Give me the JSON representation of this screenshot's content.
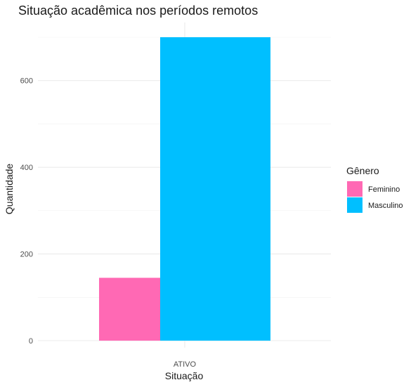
{
  "chart_data": {
    "type": "bar",
    "title": "Situação acadêmica nos períodos remotos",
    "xlabel": "Situação",
    "ylabel": "Quantidade",
    "categories": [
      "ATIVO"
    ],
    "series": [
      {
        "name": "Feminino",
        "values": [
          145
        ],
        "color": "#ff69b4"
      },
      {
        "name": "Masculino",
        "values": [
          700
        ],
        "color": "#00bfff"
      }
    ],
    "yticks": [
      0,
      200,
      400,
      600
    ],
    "ylim": [
      0,
      700
    ],
    "grid": true,
    "legend": {
      "title": "Gênero",
      "position": "right"
    }
  }
}
